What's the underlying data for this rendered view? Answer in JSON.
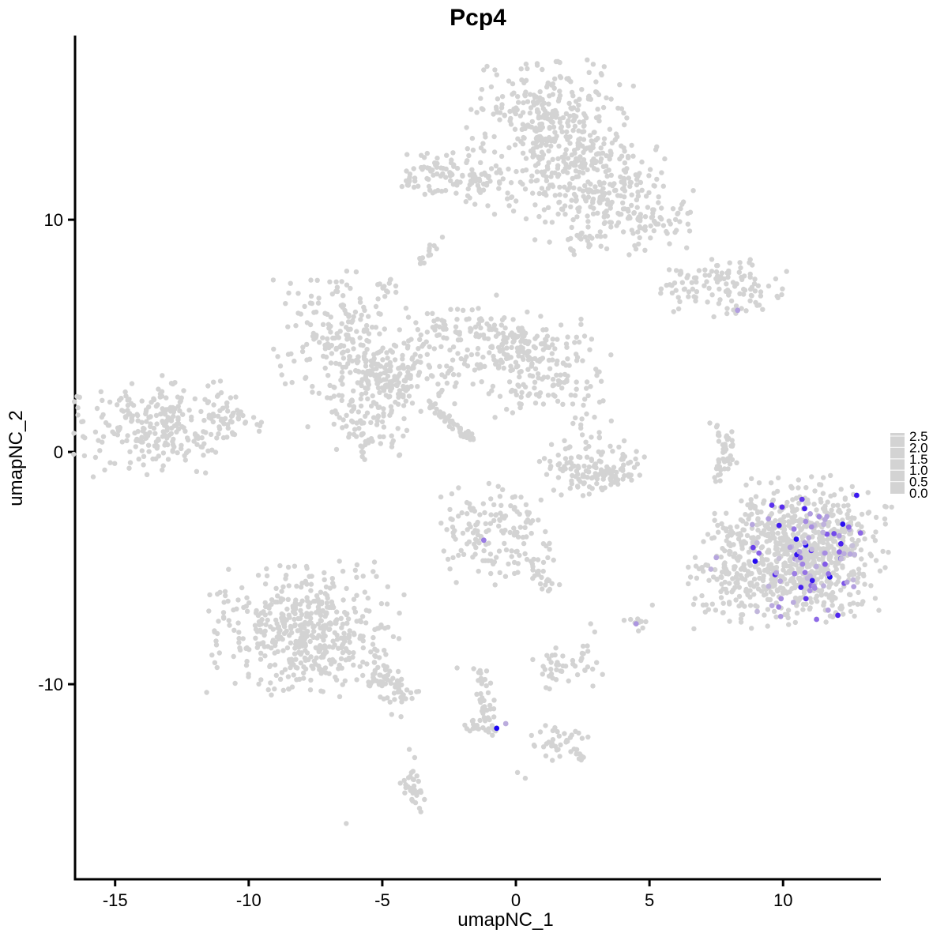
{
  "title": "Pcp4",
  "axes": {
    "x": {
      "label": "umapNC_1",
      "ticks": [
        -15,
        -10,
        -5,
        0,
        5,
        10
      ],
      "range": [
        -16.5,
        13.66
      ]
    },
    "y": {
      "label": "umapNC_2",
      "ticks": [
        -10,
        0,
        10
      ],
      "range": [
        -18.4,
        17.93
      ]
    }
  },
  "legend": {
    "labels": [
      "2.5",
      "2.0",
      "1.5",
      "1.0",
      "0.5",
      "0.0"
    ],
    "min": 0.0,
    "max": 2.5
  },
  "colors": {
    "base_point": "#d3d3d3",
    "scale_stops": [
      "#d3d3d3",
      "#c0b4dc",
      "#a78ee1",
      "#865ee7",
      "#5328ee",
      "#1a04f2"
    ]
  },
  "chart_data": {
    "type": "scatter",
    "title": "Pcp4",
    "xlabel": "umapNC_1",
    "ylabel": "umapNC_2",
    "xlim": [
      -16.5,
      13.66
    ],
    "ylim": [
      -18.4,
      17.93
    ],
    "grid": false,
    "legend_position": "right",
    "description": "UMAP feature plot; grey cells with Pcp4 expression coloured lightgrey-to-blue (0.0-2.5), expression concentrated in the large right-hand cluster",
    "clusters": [
      {
        "name": "top-main",
        "kind": "gauss",
        "center": [
          1.3,
          14.2
        ],
        "sx": 1.45,
        "sy": 1.25,
        "n": 330,
        "seed": 1
      },
      {
        "name": "top-main-southeast",
        "kind": "gauss",
        "center": [
          3.0,
          11.9
        ],
        "sx": 1.25,
        "sy": 1.0,
        "n": 170,
        "seed": 2
      },
      {
        "name": "top-right-extension",
        "kind": "gauss",
        "center": [
          4.6,
          10.3
        ],
        "sx": 1.05,
        "sy": 0.85,
        "n": 120,
        "seed": 3
      },
      {
        "name": "top-below-sparse",
        "kind": "gauss",
        "center": [
          1.4,
          10.9
        ],
        "sx": 1.05,
        "sy": 0.85,
        "n": 45,
        "seed": 4
      },
      {
        "name": "top-hook",
        "kind": "gauss",
        "center": [
          2.6,
          9.1
        ],
        "sx": 0.45,
        "sy": 0.35,
        "n": 22,
        "seed": 5
      },
      {
        "name": "ribbon-topleft",
        "kind": "strand",
        "path": [
          [
            -3.95,
            11.7
          ],
          [
            -2.9,
            12.1
          ],
          [
            -1.8,
            11.7
          ],
          [
            -0.8,
            11.4
          ]
        ],
        "jitter": 0.5,
        "n": 115,
        "seed": 6
      },
      {
        "name": "band-topright",
        "kind": "strand",
        "path": [
          [
            5.85,
            6.9
          ],
          [
            7.0,
            7.3
          ],
          [
            8.3,
            7.5
          ],
          [
            9.55,
            7.0
          ]
        ],
        "jitter": 0.5,
        "n": 105,
        "seed": 7
      },
      {
        "name": "band-dangle",
        "kind": "gauss",
        "center": [
          8.15,
          6.25
        ],
        "sx": 0.45,
        "sy": 0.25,
        "n": 12,
        "seed": 8
      },
      {
        "name": "left-mid",
        "kind": "gauss",
        "center": [
          -6.9,
          5.2
        ],
        "sx": 1.05,
        "sy": 1.25,
        "n": 160,
        "seed": 9
      },
      {
        "name": "left-mid-arm",
        "kind": "strand",
        "path": [
          [
            -6.0,
            4.0
          ],
          [
            -5.0,
            3.2
          ],
          [
            -4.3,
            2.6
          ]
        ],
        "jitter": 0.38,
        "n": 50,
        "seed": 10
      },
      {
        "name": "center-west",
        "kind": "gauss",
        "center": [
          -5.6,
          1.9
        ],
        "sx": 1.0,
        "sy": 1.2,
        "n": 140,
        "seed": 11
      },
      {
        "name": "center-mid-west",
        "kind": "gauss",
        "center": [
          -4.0,
          3.6
        ],
        "sx": 1.0,
        "sy": 1.0,
        "n": 110,
        "seed": 12
      },
      {
        "name": "center-upper",
        "kind": "gauss",
        "center": [
          -2.4,
          4.8
        ],
        "sx": 0.9,
        "sy": 0.9,
        "n": 80,
        "seed": 13
      },
      {
        "name": "diagonal-strand",
        "kind": "strand",
        "path": [
          [
            -3.2,
            2.05
          ],
          [
            -1.6,
            0.5
          ]
        ],
        "jitter": 0.09,
        "n": 50,
        "seed": 14
      },
      {
        "name": "center-east",
        "kind": "gauss",
        "center": [
          0.9,
          4.1
        ],
        "sx": 1.3,
        "sy": 0.9,
        "n": 170,
        "seed": 15
      },
      {
        "name": "center-east-arm",
        "kind": "strand",
        "path": [
          [
            -1.5,
            5.6
          ],
          [
            -0.4,
            5.1
          ],
          [
            0.5,
            4.6
          ]
        ],
        "jitter": 0.35,
        "n": 40,
        "seed": 16
      },
      {
        "name": "center-east-south",
        "kind": "gauss",
        "center": [
          0.3,
          2.6
        ],
        "sx": 0.8,
        "sy": 0.6,
        "n": 30,
        "seed": 17
      },
      {
        "name": "far-left",
        "kind": "gauss",
        "center": [
          -13.3,
          1.1
        ],
        "sx": 1.5,
        "sy": 1.0,
        "n": 270,
        "seed": 18
      },
      {
        "name": "far-left-tail",
        "kind": "strand",
        "path": [
          [
            -11.3,
            1.6
          ],
          [
            -10.4,
            1.35
          ],
          [
            -9.6,
            1.2
          ]
        ],
        "jitter": 0.22,
        "n": 26,
        "seed": 19
      },
      {
        "name": "crescent",
        "kind": "strand",
        "path": [
          [
            1.5,
            -0.3
          ],
          [
            2.2,
            -0.95
          ],
          [
            3.0,
            -1.15
          ],
          [
            3.8,
            -0.7
          ],
          [
            4.25,
            -0.15
          ]
        ],
        "jitter": 0.42,
        "n": 130,
        "seed": 20
      },
      {
        "name": "crescent-upper",
        "kind": "gauss",
        "center": [
          2.5,
          1.0
        ],
        "sx": 0.5,
        "sy": 0.8,
        "n": 30,
        "seed": 21
      },
      {
        "name": "strand-right",
        "kind": "strand",
        "path": [
          [
            7.35,
            1.3
          ],
          [
            7.85,
            0.6
          ],
          [
            7.95,
            -0.2
          ],
          [
            7.6,
            -1.0
          ]
        ],
        "jitter": 0.18,
        "n": 46,
        "seed": 22
      },
      {
        "name": "big-right",
        "kind": "gauss",
        "center": [
          10.7,
          -4.3
        ],
        "sx": 1.55,
        "sy": 1.5,
        "n": 780,
        "seed": 23
      },
      {
        "name": "big-right-west-appendage",
        "kind": "gauss",
        "center": [
          7.8,
          -5.2
        ],
        "sx": 0.7,
        "sy": 1.15,
        "n": 90,
        "seed": 24
      },
      {
        "name": "center-bottom",
        "kind": "gauss",
        "center": [
          -0.85,
          -3.5
        ],
        "sx": 1.05,
        "sy": 1.05,
        "n": 150,
        "seed": 25
      },
      {
        "name": "center-bottom-tail",
        "kind": "strand",
        "path": [
          [
            0.2,
            -4.7
          ],
          [
            0.8,
            -5.2
          ],
          [
            1.35,
            -5.8
          ]
        ],
        "jitter": 0.28,
        "n": 24,
        "seed": 26
      },
      {
        "name": "bottom-left",
        "kind": "gauss",
        "center": [
          -7.9,
          -7.6
        ],
        "sx": 1.7,
        "sy": 1.35,
        "n": 500,
        "seed": 27
      },
      {
        "name": "bottom-left-tail",
        "kind": "strand",
        "path": [
          [
            -5.6,
            -9.3
          ],
          [
            -4.9,
            -9.9
          ],
          [
            -4.2,
            -10.45
          ]
        ],
        "jitter": 0.33,
        "n": 65,
        "seed": 28
      },
      {
        "name": "bottom-strand",
        "kind": "strand",
        "path": [
          [
            -1.45,
            -9.2
          ],
          [
            -1.2,
            -10.0
          ],
          [
            -1.05,
            -10.9
          ],
          [
            -0.95,
            -11.6
          ],
          [
            -0.7,
            -12.1
          ]
        ],
        "jitter": 0.16,
        "n": 38,
        "seed": 29
      },
      {
        "name": "bottom-strand-foot",
        "kind": "gauss",
        "center": [
          -1.35,
          -11.95
        ],
        "sx": 0.33,
        "sy": 0.28,
        "n": 16,
        "seed": 30
      },
      {
        "name": "bottom-center-right-upper",
        "kind": "gauss",
        "center": [
          1.9,
          -9.3
        ],
        "sx": 0.65,
        "sy": 0.5,
        "n": 45,
        "seed": 31
      },
      {
        "name": "bottom-center-right-lower",
        "kind": "gauss",
        "center": [
          1.6,
          -12.4
        ],
        "sx": 0.5,
        "sy": 0.42,
        "n": 34,
        "seed": 32
      },
      {
        "name": "bottom-center-right-tail",
        "kind": "strand",
        "path": [
          [
            2.05,
            -12.8
          ],
          [
            2.55,
            -13.15
          ]
        ],
        "jitter": 0.1,
        "n": 8,
        "seed": 33
      },
      {
        "name": "bottom-mid-small",
        "kind": "gauss",
        "center": [
          -3.85,
          -14.3
        ],
        "sx": 0.3,
        "sy": 0.75,
        "n": 34,
        "seed": 34
      },
      {
        "name": "sliver",
        "kind": "strand",
        "path": [
          [
            -3.55,
            8.2
          ],
          [
            -3.0,
            8.85
          ]
        ],
        "jitter": 0.1,
        "n": 12,
        "seed": 35
      },
      {
        "name": "small-upperleft-blob",
        "kind": "gauss",
        "center": [
          -4.8,
          7.3
        ],
        "sx": 0.3,
        "sy": 0.28,
        "n": 12,
        "seed": 36
      },
      {
        "name": "purple-halo-blob",
        "kind": "gauss",
        "center": [
          4.6,
          -7.3
        ],
        "sx": 0.28,
        "sy": 0.33,
        "n": 10,
        "seed": 37
      }
    ],
    "singles": [
      [
        -2.75,
        9.25
      ],
      [
        -6.35,
        -16.0
      ],
      [
        0.06,
        -13.8
      ],
      [
        0.35,
        -14.05
      ],
      [
        -2.2,
        -9.3
      ],
      [
        3.2,
        -1.55
      ],
      [
        2.8,
        -7.4
      ],
      [
        2.95,
        -7.75
      ],
      [
        4.05,
        -7.25
      ],
      [
        -4.65,
        -11.3
      ],
      [
        -4.3,
        -11.4
      ],
      [
        1.7,
        -1.85
      ]
    ],
    "expressing_points": [
      [
        -0.72,
        -11.9,
        2.5
      ],
      [
        -0.38,
        -11.7,
        0.6
      ],
      [
        -1.2,
        -3.8,
        1.2
      ],
      [
        8.3,
        6.1,
        0.8
      ],
      [
        4.5,
        -7.4,
        0.9
      ],
      [
        7.5,
        -4.55,
        0.7
      ],
      [
        7.3,
        -5.05,
        0.5
      ]
    ],
    "expressing_cloud": {
      "cluster": "big-right",
      "center": [
        11.05,
        -4.25
      ],
      "sx": 1.25,
      "sy": 1.35,
      "n": 88,
      "seed": 99,
      "value_min": 0.3,
      "value_max": 2.5,
      "bounds": [
        8.8,
        12.95,
        -7.4,
        -1.7
      ]
    }
  }
}
